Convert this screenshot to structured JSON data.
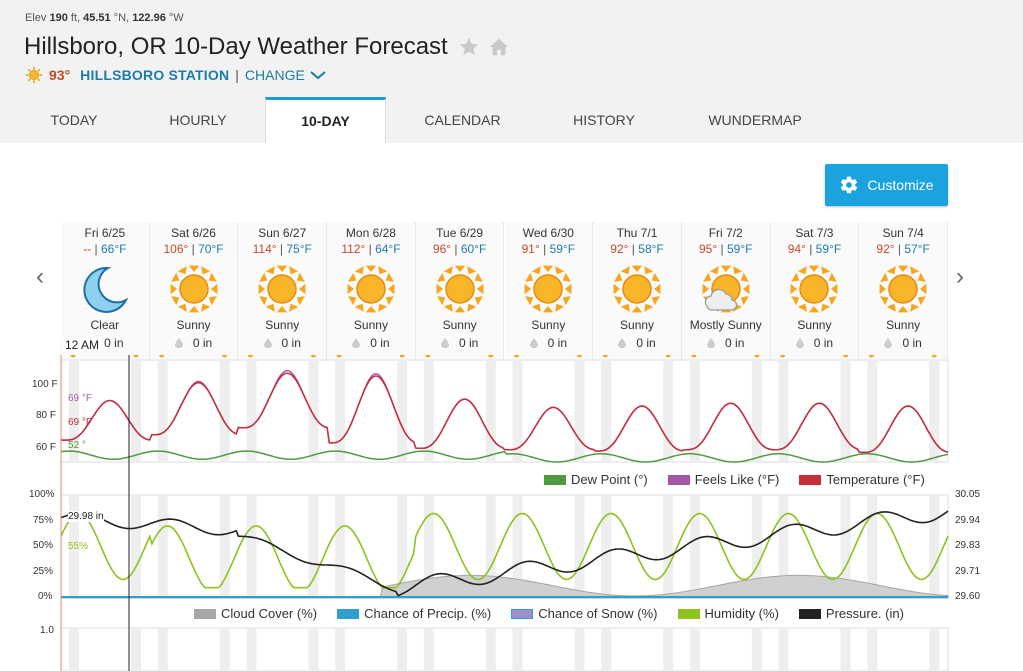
{
  "header": {
    "elev_label": "Elev",
    "elev_value": "190",
    "elev_unit": "ft,",
    "lat": "45.51",
    "lat_unit": "°N,",
    "lon": "122.96",
    "lon_unit": "°W",
    "title": "Hillsboro, OR 10-Day Weather Forecast",
    "current_temp": "93°",
    "station": "HILLSBORO STATION",
    "separator": "|",
    "change": "CHANGE"
  },
  "tabs": [
    "TODAY",
    "HOURLY",
    "10-DAY",
    "CALENDAR",
    "HISTORY",
    "WUNDERMAP"
  ],
  "active_tab": "10-DAY",
  "customize_label": "Customize",
  "nav": {
    "prev": "‹",
    "next": "›"
  },
  "days": [
    {
      "label": "Fri 6/25",
      "hi": "--",
      "lo": "66°F",
      "cond": "Clear",
      "precip": "0 in",
      "icon": "moon-icon"
    },
    {
      "label": "Sat 6/26",
      "hi": "106°",
      "lo": "70°F",
      "cond": "Sunny",
      "precip": "0 in",
      "icon": "sun-icon"
    },
    {
      "label": "Sun 6/27",
      "hi": "114°",
      "lo": "75°F",
      "cond": "Sunny",
      "precip": "0 in",
      "icon": "sun-icon"
    },
    {
      "label": "Mon 6/28",
      "hi": "112°",
      "lo": "64°F",
      "cond": "Sunny",
      "precip": "0 in",
      "icon": "sun-icon"
    },
    {
      "label": "Tue 6/29",
      "hi": "96°",
      "lo": "60°F",
      "cond": "Sunny",
      "precip": "0 in",
      "icon": "sun-icon"
    },
    {
      "label": "Wed 6/30",
      "hi": "91°",
      "lo": "59°F",
      "cond": "Sunny",
      "precip": "0 in",
      "icon": "sun-icon"
    },
    {
      "label": "Thu 7/1",
      "hi": "92°",
      "lo": "58°F",
      "cond": "Sunny",
      "precip": "0 in",
      "icon": "sun-icon"
    },
    {
      "label": "Fri 7/2",
      "hi": "95°",
      "lo": "59°F",
      "cond": "Mostly Sunny",
      "precip": "0 in",
      "icon": "partly-sunny-icon"
    },
    {
      "label": "Sat 7/3",
      "hi": "94°",
      "lo": "59°F",
      "cond": "Sunny",
      "precip": "0 in",
      "icon": "sun-icon"
    },
    {
      "label": "Sun 7/4",
      "hi": "92°",
      "lo": "57°F",
      "cond": "Sunny",
      "precip": "0 in",
      "icon": "sun-icon"
    }
  ],
  "time_marker": "12 AM",
  "temp_chart": {
    "y_ticks": [
      "100 F",
      "80 F",
      "60 F"
    ],
    "annotations": {
      "feels_like": "69 °F",
      "temperature": "69 °F",
      "dew_point": "52 °"
    },
    "legend": [
      "Dew Point (°)",
      "Feels Like (°F)",
      "Temperature (°F)"
    ],
    "colors": {
      "dew_point": "#4f9a3f",
      "feels_like": "#a558a8",
      "temperature": "#c52f3a"
    }
  },
  "humidity_chart": {
    "y_ticks_left": [
      "100%",
      "75%",
      "50%",
      "25%",
      "0%"
    ],
    "y_ticks_right": [
      "30.05",
      "29.94",
      "29.83",
      "29.71",
      "29.60"
    ],
    "annotations": {
      "pressure": "29.98 in",
      "humidity": "55%"
    },
    "legend": [
      "Cloud Cover (%)",
      "Chance of Precip. (%)",
      "Chance of Snow (%)",
      "Humidity (%)",
      "Pressure. (in)"
    ],
    "colors": {
      "cloud": "#a6a6a6",
      "precip": "#2f9fd2",
      "snow": "#9d8fce",
      "humidity": "#8ec21f",
      "pressure": "#222222"
    }
  },
  "precip_chart": {
    "y_tick": "1.0"
  }
}
